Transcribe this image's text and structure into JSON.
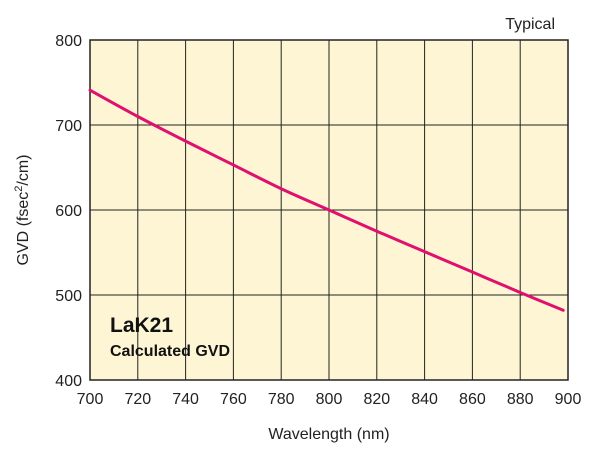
{
  "chart_data": {
    "type": "line",
    "title": "",
    "corner_note": "Typical",
    "xlabel": "Wavelength (nm)",
    "ylabel": {
      "prefix": "GVD (fsec",
      "superscript": "2",
      "suffix": "/cm)"
    },
    "xlim": [
      700,
      900
    ],
    "ylim": [
      400,
      800
    ],
    "xticks": [
      700,
      720,
      740,
      760,
      780,
      800,
      820,
      840,
      860,
      880,
      900
    ],
    "yticks": [
      400,
      500,
      600,
      700,
      800
    ],
    "grid": true,
    "plot_background": "#fdf5d3",
    "grid_color": "#222222",
    "series": [
      {
        "color": "#e0106e",
        "x": [
          700,
          720,
          740,
          760,
          780,
          800,
          820,
          840,
          860,
          880,
          898
        ],
        "y": [
          741,
          710,
          681,
          653,
          625,
          600,
          575,
          551,
          527,
          503,
          482
        ]
      }
    ],
    "annotation": {
      "line1": "LaK21",
      "line2": "Calculated GVD"
    }
  }
}
